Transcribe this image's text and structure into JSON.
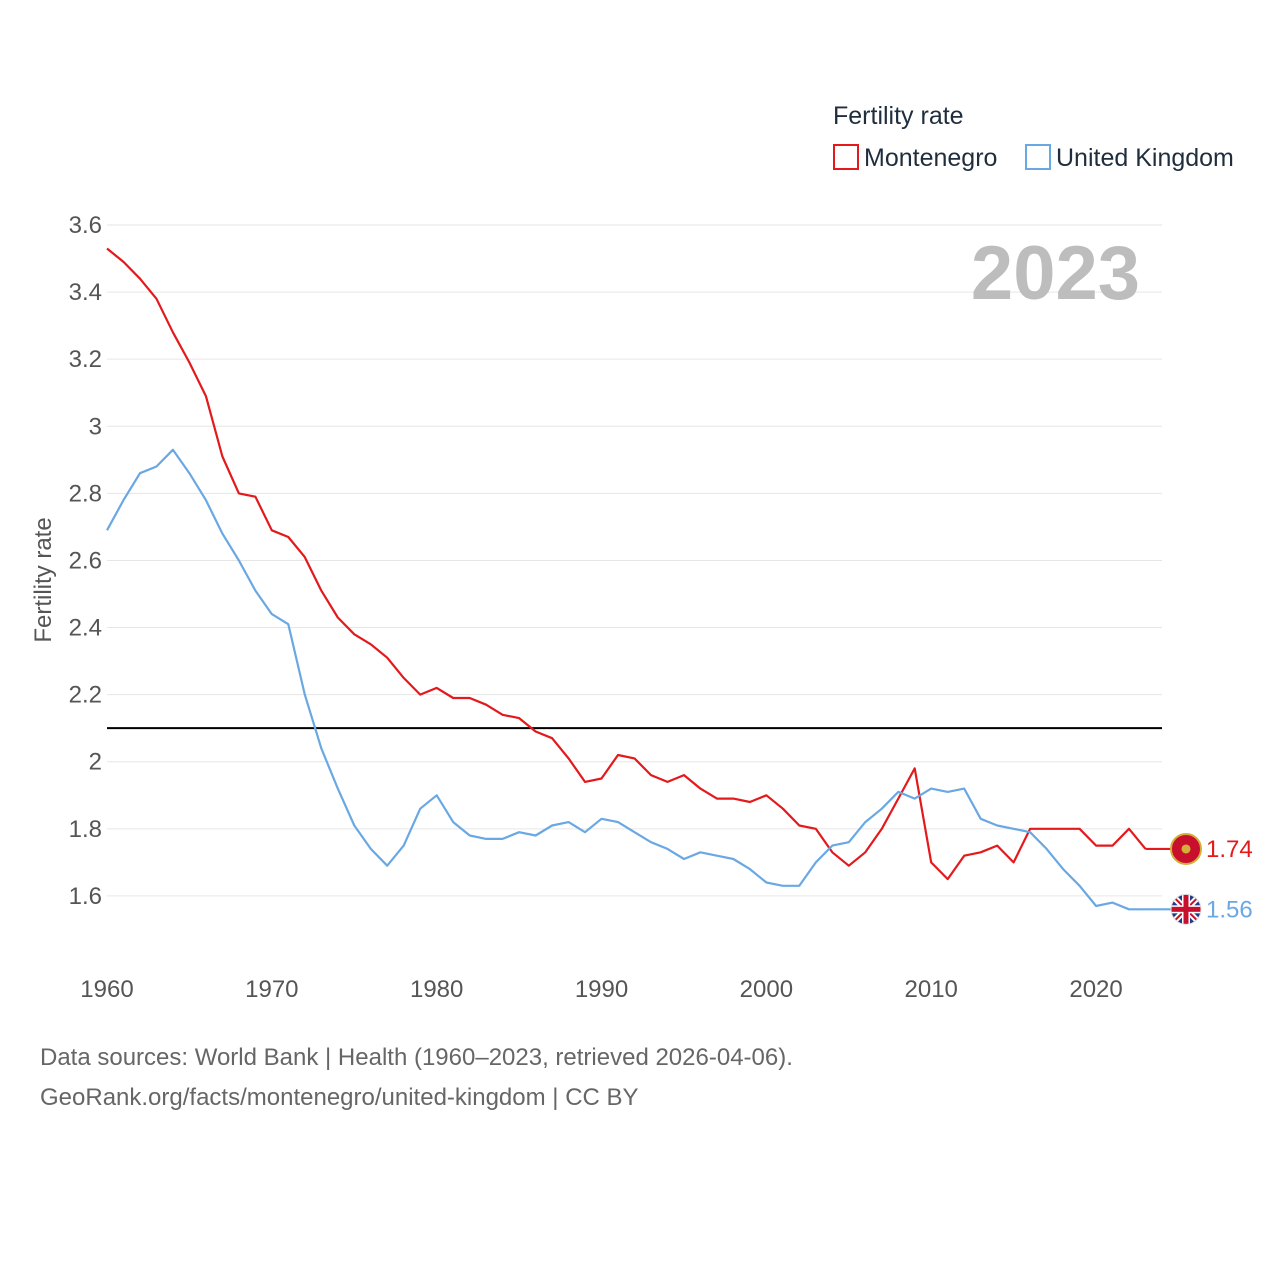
{
  "chart_data": {
    "type": "line",
    "legend_title": "Fertility rate",
    "ylabel": "Fertility rate",
    "xlabel": "",
    "year_label": "2023",
    "ylim": [
      1.4,
      3.6
    ],
    "yticks": [
      1.6,
      1.8,
      2,
      2.2,
      2.4,
      2.6,
      2.8,
      3,
      3.2,
      3.4,
      3.6
    ],
    "ytick_labels": [
      "1.6",
      "1.8",
      "2",
      "2.2",
      "2.4",
      "2.6",
      "2.8",
      "3",
      "3.2",
      "3.4",
      "3.6"
    ],
    "xlim": [
      1960,
      2024
    ],
    "xticks": [
      1960,
      1970,
      1980,
      1990,
      2000,
      2010,
      2020
    ],
    "xtick_labels": [
      "1960",
      "1970",
      "1980",
      "1990",
      "2000",
      "2010",
      "2020"
    ],
    "reference_line": 2.1,
    "x": [
      1960,
      1961,
      1962,
      1963,
      1964,
      1965,
      1966,
      1967,
      1968,
      1969,
      1970,
      1971,
      1972,
      1973,
      1974,
      1975,
      1976,
      1977,
      1978,
      1979,
      1980,
      1981,
      1982,
      1983,
      1984,
      1985,
      1986,
      1987,
      1988,
      1989,
      1990,
      1991,
      1992,
      1993,
      1994,
      1995,
      1996,
      1997,
      1998,
      1999,
      2000,
      2001,
      2002,
      2003,
      2004,
      2005,
      2006,
      2007,
      2008,
      2009,
      2010,
      2011,
      2012,
      2013,
      2014,
      2015,
      2016,
      2017,
      2018,
      2019,
      2020,
      2021,
      2022,
      2023
    ],
    "series": [
      {
        "name": "Montenegro",
        "color": "#e3191c",
        "end_label": "1.74",
        "values": [
          3.53,
          3.49,
          3.44,
          3.38,
          3.28,
          3.19,
          3.09,
          2.91,
          2.8,
          2.79,
          2.69,
          2.67,
          2.61,
          2.51,
          2.43,
          2.38,
          2.35,
          2.31,
          2.25,
          2.2,
          2.22,
          2.19,
          2.19,
          2.17,
          2.14,
          2.13,
          2.09,
          2.07,
          2.01,
          1.94,
          1.95,
          2.02,
          2.01,
          1.96,
          1.94,
          1.96,
          1.92,
          1.89,
          1.89,
          1.88,
          1.9,
          1.86,
          1.81,
          1.8,
          1.73,
          1.69,
          1.73,
          1.8,
          1.89,
          1.98,
          1.7,
          1.65,
          1.72,
          1.73,
          1.75,
          1.7,
          1.8,
          1.8,
          1.8,
          1.8,
          1.75,
          1.75,
          1.8,
          1.74
        ]
      },
      {
        "name": "United Kingdom",
        "color": "#6aa8e4",
        "end_label": "1.56",
        "values": [
          2.69,
          2.78,
          2.86,
          2.88,
          2.93,
          2.86,
          2.78,
          2.68,
          2.6,
          2.51,
          2.44,
          2.41,
          2.2,
          2.04,
          1.92,
          1.81,
          1.74,
          1.69,
          1.75,
          1.86,
          1.9,
          1.82,
          1.78,
          1.77,
          1.77,
          1.79,
          1.78,
          1.81,
          1.82,
          1.79,
          1.83,
          1.82,
          1.79,
          1.76,
          1.74,
          1.71,
          1.73,
          1.72,
          1.71,
          1.68,
          1.64,
          1.63,
          1.63,
          1.7,
          1.75,
          1.76,
          1.82,
          1.86,
          1.91,
          1.89,
          1.92,
          1.91,
          1.92,
          1.83,
          1.81,
          1.8,
          1.79,
          1.74,
          1.68,
          1.63,
          1.57,
          1.58,
          1.56,
          1.56
        ]
      }
    ]
  },
  "footer": {
    "line1": "Data sources: World Bank | Health (1960–2023, retrieved 2026-04-06).",
    "line2": "GeoRank.org/facts/montenegro/united-kingdom | CC BY"
  }
}
